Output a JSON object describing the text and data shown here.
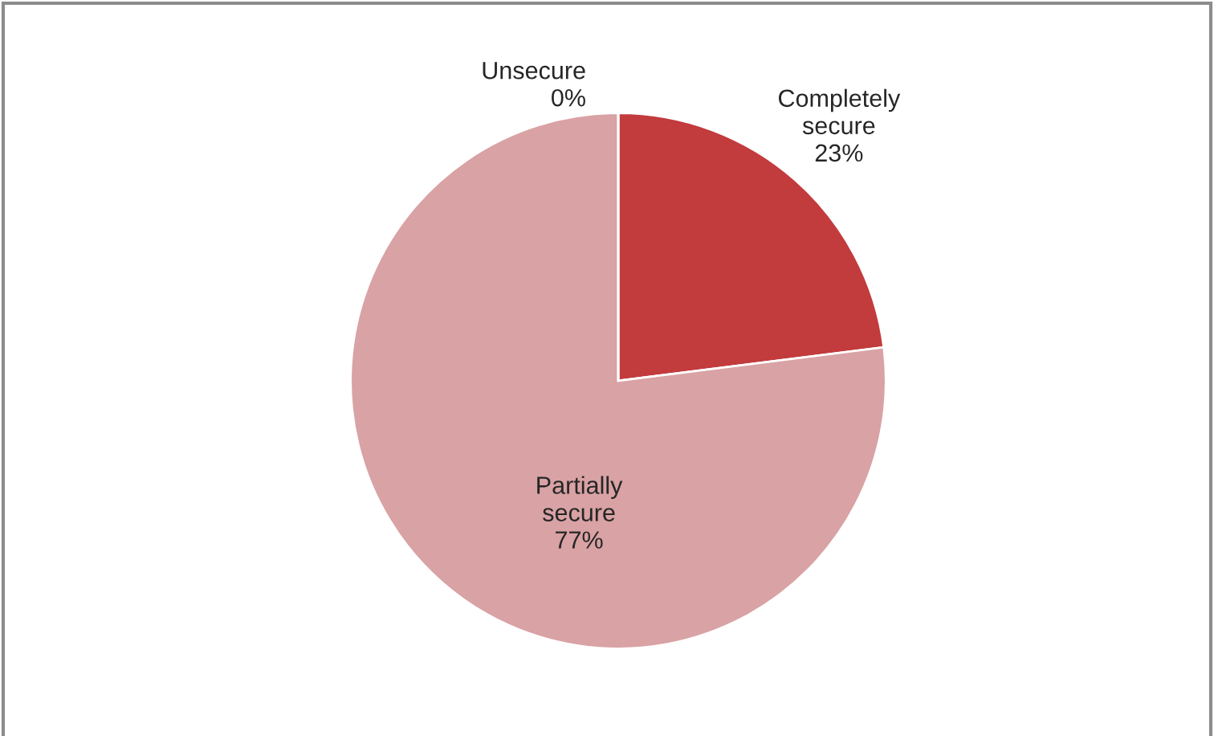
{
  "chart_data": {
    "type": "pie",
    "categories": [
      "Completely secure",
      "Partially secure",
      "Unsecure"
    ],
    "values": [
      23,
      77,
      0
    ],
    "colors": [
      "#c23b3d",
      "#d9a2a4",
      "#e8c4c5"
    ],
    "value_labels": [
      "23%",
      "77%",
      "0%"
    ],
    "legend": false
  }
}
